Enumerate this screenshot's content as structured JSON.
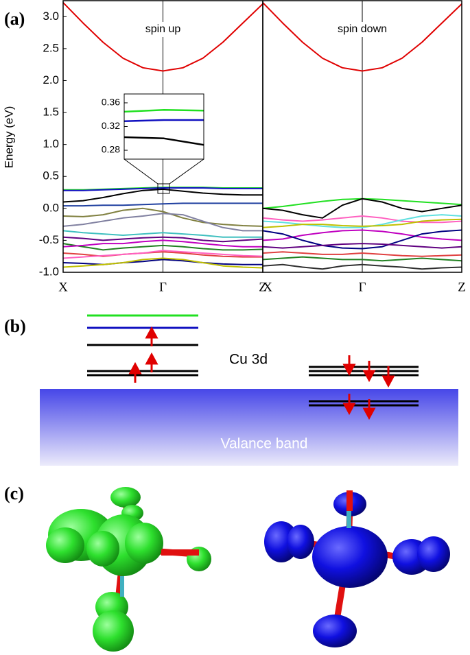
{
  "panel_labels": [
    "(a)",
    "(b)",
    "(c)"
  ],
  "diagram": {
    "orbital_label": "Cu 3d",
    "band_label": "Valance band"
  },
  "chart_data": [
    {
      "type": "line",
      "annotation": "spin up",
      "y_label": "Energy (eV)",
      "x": [
        0,
        0.1,
        0.2,
        0.3,
        0.4,
        0.5,
        0.6,
        0.7,
        0.8,
        0.9,
        1
      ],
      "xlim": [
        0,
        1
      ],
      "xticks": [
        {
          "value": 0,
          "label": "X"
        },
        {
          "value": 0.5,
          "label": "Γ"
        },
        {
          "value": 1,
          "label": "Z"
        }
      ],
      "ylim": [
        -1,
        3.25
      ],
      "yticks": [
        {
          "value": -1,
          "label": "-1.0"
        },
        -0.5,
        {
          "value": 0,
          "label": "0.0"
        },
        0.5,
        {
          "value": 1,
          "label": "1.0"
        },
        1.5,
        {
          "value": 2,
          "label": "2.0"
        },
        2.5,
        {
          "value": 3,
          "label": "3.0"
        }
      ],
      "series": [
        {
          "color": "#e00000",
          "values": [
            3.22,
            2.9,
            2.6,
            2.35,
            2.2,
            2.15,
            2.2,
            2.35,
            2.6,
            2.9,
            3.2
          ]
        },
        {
          "color": "#20e020",
          "values": [
            0.29,
            0.29,
            0.3,
            0.31,
            0.32,
            0.33,
            0.33,
            0.33,
            0.32,
            0.32,
            0.32
          ]
        },
        {
          "color": "#1010c0",
          "values": [
            0.28,
            0.28,
            0.29,
            0.3,
            0.31,
            0.32,
            0.32,
            0.32,
            0.31,
            0.31,
            0.31
          ]
        },
        {
          "color": "#000000",
          "values": [
            0.1,
            0.12,
            0.17,
            0.23,
            0.28,
            0.3,
            0.27,
            0.24,
            0.22,
            0.21,
            0.21
          ]
        },
        {
          "color": "#2040a0",
          "values": [
            0.04,
            0.04,
            0.05,
            0.05,
            0.06,
            0.07,
            0.08,
            0.08,
            0.08,
            0.08,
            0.08
          ]
        },
        {
          "color": "#808040",
          "values": [
            -0.12,
            -0.13,
            -0.1,
            -0.03,
            0.0,
            -0.05,
            -0.15,
            -0.22,
            -0.25,
            -0.27,
            -0.28
          ]
        },
        {
          "color": "#8080a0",
          "values": [
            -0.28,
            -0.25,
            -0.2,
            -0.15,
            -0.12,
            -0.08,
            -0.1,
            -0.2,
            -0.3,
            -0.35,
            -0.35
          ]
        },
        {
          "color": "#40c0c0",
          "values": [
            -0.35,
            -0.38,
            -0.4,
            -0.42,
            -0.4,
            -0.38,
            -0.4,
            -0.42,
            -0.45,
            -0.45,
            -0.45
          ]
        },
        {
          "color": "#600080",
          "values": [
            -0.45,
            -0.47,
            -0.5,
            -0.48,
            -0.46,
            -0.45,
            -0.46,
            -0.5,
            -0.52,
            -0.5,
            -0.48
          ]
        },
        {
          "color": "#208020",
          "values": [
            -0.55,
            -0.6,
            -0.65,
            -0.62,
            -0.6,
            -0.58,
            -0.6,
            -0.63,
            -0.65,
            -0.65,
            -0.64
          ]
        },
        {
          "color": "#c000c0",
          "values": [
            -0.6,
            -0.58,
            -0.55,
            -0.55,
            -0.52,
            -0.5,
            -0.52,
            -0.55,
            -0.58,
            -0.6,
            -0.6
          ]
        },
        {
          "color": "#e04040",
          "values": [
            -0.7,
            -0.72,
            -0.75,
            -0.72,
            -0.7,
            -0.68,
            -0.7,
            -0.73,
            -0.75,
            -0.76,
            -0.76
          ]
        },
        {
          "color": "#ff60c0",
          "values": [
            -0.78,
            -0.76,
            -0.74,
            -0.72,
            -0.7,
            -0.66,
            -0.68,
            -0.7,
            -0.72,
            -0.74,
            -0.75
          ]
        },
        {
          "color": "#000080",
          "values": [
            -0.85,
            -0.86,
            -0.88,
            -0.85,
            -0.83,
            -0.8,
            -0.82,
            -0.85,
            -0.87,
            -0.88,
            -0.88
          ]
        },
        {
          "color": "#c0c000",
          "values": [
            -0.92,
            -0.9,
            -0.88,
            -0.85,
            -0.8,
            -0.78,
            -0.8,
            -0.85,
            -0.9,
            -0.92,
            -0.93
          ]
        }
      ]
    },
    {
      "type": "line",
      "annotation": "spin down",
      "x": [
        0,
        0.1,
        0.2,
        0.3,
        0.4,
        0.5,
        0.6,
        0.7,
        0.8,
        0.9,
        1
      ],
      "xlim": [
        0,
        1
      ],
      "xticks": [
        {
          "value": 0,
          "label": "X"
        },
        {
          "value": 0.5,
          "label": "Γ"
        },
        {
          "value": 1,
          "label": "Z"
        }
      ],
      "ylim": [
        -1,
        3.25
      ],
      "series": [
        {
          "color": "#e00000",
          "values": [
            3.22,
            2.9,
            2.6,
            2.35,
            2.2,
            2.15,
            2.2,
            2.35,
            2.6,
            2.9,
            3.2
          ]
        },
        {
          "color": "#20e020",
          "values": [
            0.0,
            0.03,
            0.07,
            0.11,
            0.14,
            0.15,
            0.14,
            0.12,
            0.1,
            0.08,
            0.06
          ]
        },
        {
          "color": "#000000",
          "values": [
            0.0,
            -0.03,
            -0.1,
            -0.15,
            0.05,
            0.15,
            0.1,
            0.0,
            -0.05,
            0.0,
            0.05
          ]
        },
        {
          "color": "#ff60c0",
          "values": [
            -0.15,
            -0.18,
            -0.2,
            -0.18,
            -0.15,
            -0.12,
            -0.15,
            -0.2,
            -0.22,
            -0.22,
            -0.2
          ]
        },
        {
          "color": "#60e0e0",
          "values": [
            -0.2,
            -0.22,
            -0.25,
            -0.28,
            -0.3,
            -0.3,
            -0.25,
            -0.18,
            -0.12,
            -0.1,
            -0.12
          ]
        },
        {
          "color": "#c0c000",
          "values": [
            -0.3,
            -0.28,
            -0.25,
            -0.25,
            -0.27,
            -0.28,
            -0.27,
            -0.25,
            -0.2,
            -0.18,
            -0.17
          ]
        },
        {
          "color": "#c000c0",
          "values": [
            -0.5,
            -0.48,
            -0.42,
            -0.38,
            -0.35,
            -0.34,
            -0.36,
            -0.4,
            -0.45,
            -0.48,
            -0.5
          ]
        },
        {
          "color": "#000080",
          "values": [
            -0.35,
            -0.4,
            -0.5,
            -0.58,
            -0.62,
            -0.63,
            -0.6,
            -0.5,
            -0.4,
            -0.36,
            -0.34
          ]
        },
        {
          "color": "#600080",
          "values": [
            -0.6,
            -0.62,
            -0.6,
            -0.58,
            -0.56,
            -0.55,
            -0.56,
            -0.58,
            -0.6,
            -0.62,
            -0.6
          ]
        },
        {
          "color": "#e04040",
          "values": [
            -0.7,
            -0.68,
            -0.7,
            -0.72,
            -0.72,
            -0.7,
            -0.72,
            -0.74,
            -0.75,
            -0.74,
            -0.73
          ]
        },
        {
          "color": "#208020",
          "values": [
            -0.8,
            -0.78,
            -0.76,
            -0.78,
            -0.8,
            -0.8,
            -0.82,
            -0.8,
            -0.78,
            -0.8,
            -0.82
          ]
        },
        {
          "color": "#303030",
          "values": [
            -0.9,
            -0.88,
            -0.92,
            -0.95,
            -0.9,
            -0.88,
            -0.9,
            -0.92,
            -0.95,
            -0.93,
            -0.92
          ]
        }
      ]
    },
    {
      "type": "line",
      "x": [
        0.45,
        0.5,
        0.55
      ],
      "xlim": [
        0.45,
        0.55
      ],
      "ylim": [
        0.265,
        0.375
      ],
      "yticks": [
        0.28,
        0.32,
        0.36
      ],
      "series": [
        {
          "color": "#20e020",
          "values": [
            0.345,
            0.348,
            0.347
          ]
        },
        {
          "color": "#1010c0",
          "values": [
            0.329,
            0.331,
            0.331
          ]
        },
        {
          "color": "#000000",
          "values": [
            0.302,
            0.3,
            0.289
          ]
        }
      ]
    }
  ]
}
